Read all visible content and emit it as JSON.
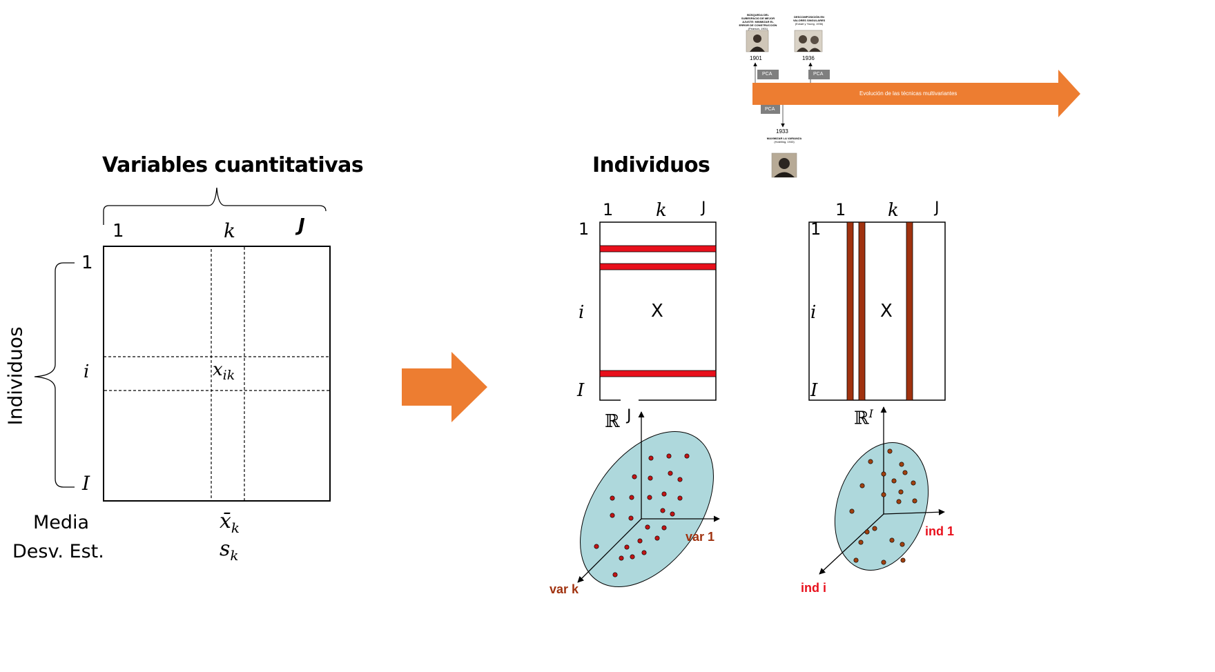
{
  "matrix_left": {
    "title": "Variables cuantitativas",
    "col_first": "1",
    "col_k": "k",
    "col_last": "J",
    "row_first": "1",
    "row_i": "i",
    "row_last": "I",
    "cell": "x",
    "cell_sub": "ik",
    "rows_caption": "Individuos",
    "mean_label": "Media",
    "sd_label": "Desv. Est.",
    "mean_symbol": "x̄",
    "sd_symbol": "s",
    "symbol_sub": "k"
  },
  "arrow_color": "#ED7D31",
  "right": {
    "title": "Individuos",
    "matrix1": {
      "col_first": "1",
      "col_k": "k",
      "col_last": "J",
      "row_first": "1",
      "row_i": "i",
      "row_last": "I",
      "center": "X",
      "band_color": "#E8101C"
    },
    "matrix2": {
      "col_first": "1",
      "col_k": "k",
      "col_last": "J",
      "row_first": "1",
      "row_i": "i",
      "row_last": "I",
      "center": "X",
      "band_color": "#A0320F"
    },
    "space1": {
      "symbol": "ℝ",
      "sup": "J",
      "axis_x": "var 1",
      "axis_z": "var k",
      "dot_color": "#C01515",
      "ellipse_color": "#AED8DC"
    },
    "space2": {
      "symbol": "ℝ",
      "sup": "I",
      "axis_x": "ind 1",
      "axis_z": "ind i",
      "dot_color": "#A0400F",
      "ellipse_color": "#AED8DC"
    }
  },
  "timeline": {
    "arrow_label": "Evolución de las técnicas multivariantes",
    "arrow_color": "#ED7D31",
    "events": [
      {
        "year": "1901",
        "tag": "PCA",
        "caption": "BÚSQUEDA DEL SUBESPACIO DE MEJOR AJUSTE: MINIMIZAR EL ERROR DE CONSTRUCCIÓN",
        "credit": "(Pearson, 1901)"
      },
      {
        "year": "1936",
        "tag": "PCA",
        "caption": "DESCOMPOSICIÓN EN VALORES SINGULARES",
        "credit": "(Eckart y Young, 1936)"
      },
      {
        "year": "1933",
        "tag": "PCA",
        "caption": "MAXIMIZAR LA VARIANZA",
        "credit": "(Hotelling, 1933)"
      }
    ]
  }
}
